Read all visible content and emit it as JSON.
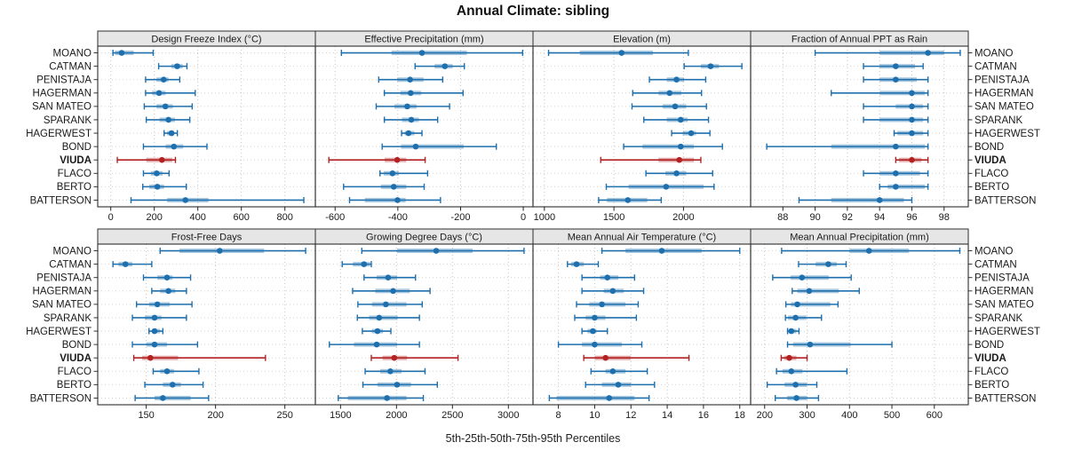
{
  "title": "Annual Climate: sibling",
  "caption": "5th-25th-50th-75th-95th Percentiles",
  "colors": {
    "series": "#1E6FAD",
    "highlight": "#B22222",
    "strip_bg": "#E6E6E6",
    "border": "#2F2F2F",
    "gridline": "#C4C4C4",
    "row_guide": "#D2D2D2",
    "text": "#1A1A1A"
  },
  "chart_data": {
    "type": "scatter",
    "subtype": "percentile-interval-dotplot",
    "grid": true,
    "legend_position": "none",
    "percentiles": [
      5,
      25,
      50,
      75,
      95
    ],
    "stations": [
      "MOANO",
      "CATMAN",
      "PENISTAJA",
      "HAGERMAN",
      "SAN MATEO",
      "SPARANK",
      "HAGERWEST",
      "BOND",
      "VIUDA",
      "FLACO",
      "BERTO",
      "BATTERSON"
    ],
    "highlight_station": "VIUDA",
    "panels": [
      {
        "title": "Design Freeze Index (°C)",
        "ticks": [
          0,
          200,
          400,
          600,
          800
        ],
        "domain": [
          -60,
          940
        ],
        "values": [
          [
            10,
            20,
            50,
            105,
            195
          ],
          [
            220,
            278,
            305,
            330,
            350
          ],
          [
            160,
            210,
            243,
            265,
            317
          ],
          [
            160,
            190,
            222,
            252,
            388
          ],
          [
            154,
            210,
            251,
            285,
            374
          ],
          [
            163,
            224,
            265,
            295,
            363
          ],
          [
            245,
            258,
            279,
            292,
            306
          ],
          [
            150,
            252,
            290,
            333,
            442
          ],
          [
            30,
            163,
            235,
            283,
            297
          ],
          [
            150,
            184,
            211,
            238,
            268
          ],
          [
            147,
            177,
            214,
            245,
            347
          ],
          [
            93,
            259,
            343,
            449,
            887
          ]
        ]
      },
      {
        "title": "Effective Precipitation (mm)",
        "ticks": [
          -600,
          -400,
          -200,
          0
        ],
        "domain": [
          -663,
          31
        ],
        "values": [
          [
            -580,
            -420,
            -323,
            -180,
            -2
          ],
          [
            -345,
            -283,
            -250,
            -225,
            -188
          ],
          [
            -461,
            -402,
            -361,
            -318,
            -257
          ],
          [
            -443,
            -392,
            -359,
            -325,
            -192
          ],
          [
            -469,
            -411,
            -370,
            -340,
            -235
          ],
          [
            -443,
            -387,
            -357,
            -333,
            -273
          ],
          [
            -388,
            -378,
            -366,
            -347,
            -323
          ],
          [
            -450,
            -390,
            -343,
            -190,
            -86
          ],
          [
            -620,
            -442,
            -402,
            -373,
            -313
          ],
          [
            -457,
            -445,
            -417,
            -397,
            -305
          ],
          [
            -573,
            -454,
            -413,
            -373,
            -316
          ],
          [
            -554,
            -505,
            -401,
            -375,
            -264
          ]
        ]
      },
      {
        "title": "Elevation (m)",
        "ticks": [
          1000,
          1500,
          2000
        ],
        "domain": [
          918,
          2483
        ],
        "values": [
          [
            1030,
            1255,
            1555,
            1780,
            2035
          ],
          [
            2005,
            2125,
            2195,
            2255,
            2420
          ],
          [
            1755,
            1880,
            1950,
            2005,
            2160
          ],
          [
            1635,
            1820,
            1900,
            1985,
            2130
          ],
          [
            1630,
            1850,
            1940,
            2020,
            2165
          ],
          [
            1715,
            1880,
            1980,
            2030,
            2180
          ],
          [
            1915,
            1995,
            2055,
            2090,
            2190
          ],
          [
            1570,
            1705,
            1980,
            2075,
            2280
          ],
          [
            1405,
            1820,
            1970,
            2075,
            2125
          ],
          [
            1730,
            1870,
            1950,
            2020,
            2210
          ],
          [
            1445,
            1605,
            1875,
            2145,
            2220
          ],
          [
            1390,
            1450,
            1600,
            1740,
            1840
          ]
        ]
      },
      {
        "title": "Fraction of Annual PPT as Rain",
        "ticks": [
          88,
          90,
          92,
          94,
          96,
          98
        ],
        "domain": [
          86,
          99.5
        ],
        "values": [
          [
            90,
            94,
            97,
            98,
            99
          ],
          [
            93,
            94,
            95,
            96.2,
            96.7
          ],
          [
            93,
            94,
            95,
            96.3,
            97
          ],
          [
            91,
            94,
            96,
            96.8,
            97
          ],
          [
            93,
            95,
            96,
            96.7,
            97
          ],
          [
            93,
            94,
            96,
            96.7,
            97
          ],
          [
            94.9,
            95.1,
            96,
            96.7,
            97
          ],
          [
            87,
            91,
            95,
            96.8,
            97
          ],
          [
            95,
            95.2,
            96,
            96.6,
            97
          ],
          [
            93,
            94,
            95,
            96.5,
            97
          ],
          [
            94,
            94.5,
            95,
            96.8,
            97
          ],
          [
            89,
            91,
            94,
            95.5,
            96
          ]
        ]
      },
      {
        "title": "Frost-Free Days",
        "ticks": [
          150,
          200,
          250
        ],
        "domain": [
          115,
          272
        ],
        "values": [
          [
            160,
            174,
            203,
            235,
            265
          ],
          [
            126,
            130,
            135,
            140,
            154
          ],
          [
            148,
            158,
            165,
            169,
            182
          ],
          [
            154,
            160,
            166,
            171,
            179
          ],
          [
            143,
            152,
            158,
            167,
            183
          ],
          [
            140,
            149,
            156,
            161,
            179
          ],
          [
            152,
            154,
            156,
            160,
            162
          ],
          [
            140,
            150,
            156,
            165,
            187
          ],
          [
            141,
            147,
            153,
            173,
            236
          ],
          [
            155,
            160,
            165,
            170,
            188
          ],
          [
            149,
            162,
            169,
            175,
            191
          ],
          [
            142,
            156,
            162,
            182,
            195
          ]
        ]
      },
      {
        "title": "Growing Degree Days (°C)",
        "ticks": [
          1500,
          2000,
          2500,
          3000
        ],
        "domain": [
          1275,
          3220
        ],
        "values": [
          [
            1690,
            2005,
            2355,
            2680,
            3140
          ],
          [
            1515,
            1610,
            1710,
            1765,
            1775
          ],
          [
            1710,
            1823,
            1925,
            2005,
            2170
          ],
          [
            1608,
            1810,
            1970,
            2120,
            2300
          ],
          [
            1655,
            1780,
            1905,
            2090,
            2230
          ],
          [
            1650,
            1755,
            1845,
            2010,
            2205
          ],
          [
            1695,
            1780,
            1830,
            1880,
            1950
          ],
          [
            1400,
            1620,
            1823,
            2005,
            2205
          ],
          [
            1775,
            1875,
            1980,
            2095,
            2550
          ],
          [
            1720,
            1855,
            1945,
            2045,
            2255
          ],
          [
            1700,
            1830,
            2005,
            2130,
            2365
          ],
          [
            1480,
            1565,
            1915,
            2090,
            2240
          ]
        ]
      },
      {
        "title": "Mean Annual Air Temperature (°C)",
        "ticks": [
          8,
          10,
          12,
          14,
          16,
          18
        ],
        "domain": [
          6.6,
          18.6
        ],
        "values": [
          [
            10.4,
            11.7,
            13.7,
            15.9,
            18.0
          ],
          [
            8.5,
            8.7,
            9.0,
            9.4,
            10.2
          ],
          [
            9.3,
            10.3,
            10.7,
            11.3,
            12.2
          ],
          [
            9.3,
            10.5,
            11.0,
            11.6,
            12.7
          ],
          [
            9.0,
            9.7,
            10.4,
            11.7,
            12.4
          ],
          [
            8.9,
            9.5,
            10.0,
            10.6,
            12.3
          ],
          [
            9.3,
            9.6,
            9.9,
            10.1,
            10.7
          ],
          [
            8.0,
            9.3,
            10.0,
            11.5,
            12.6
          ],
          [
            9.4,
            10.0,
            10.6,
            12.0,
            15.2
          ],
          [
            9.8,
            10.6,
            11.0,
            11.7,
            12.9
          ],
          [
            9.5,
            10.4,
            11.3,
            12.0,
            13.3
          ],
          [
            7.5,
            7.9,
            10.8,
            12.2,
            13.0
          ]
        ]
      },
      {
        "title": "Mean Annual Precipitation (mm)",
        "ticks": [
          200,
          300,
          400,
          500,
          600
        ],
        "domain": [
          167,
          680
        ],
        "values": [
          [
            240,
            400,
            446,
            540,
            660
          ],
          [
            280,
            320,
            350,
            370,
            392
          ],
          [
            219,
            261,
            288,
            351,
            404
          ],
          [
            265,
            277,
            305,
            375,
            423
          ],
          [
            250,
            262,
            277,
            355,
            373
          ],
          [
            249,
            255,
            273,
            298,
            334
          ],
          [
            254,
            256,
            263,
            275,
            281
          ],
          [
            254,
            267,
            307,
            403,
            500
          ],
          [
            239,
            246,
            258,
            275,
            300
          ],
          [
            228,
            242,
            263,
            289,
            394
          ],
          [
            206,
            247,
            273,
            299,
            323
          ],
          [
            225,
            253,
            275,
            300,
            327
          ]
        ]
      }
    ]
  }
}
